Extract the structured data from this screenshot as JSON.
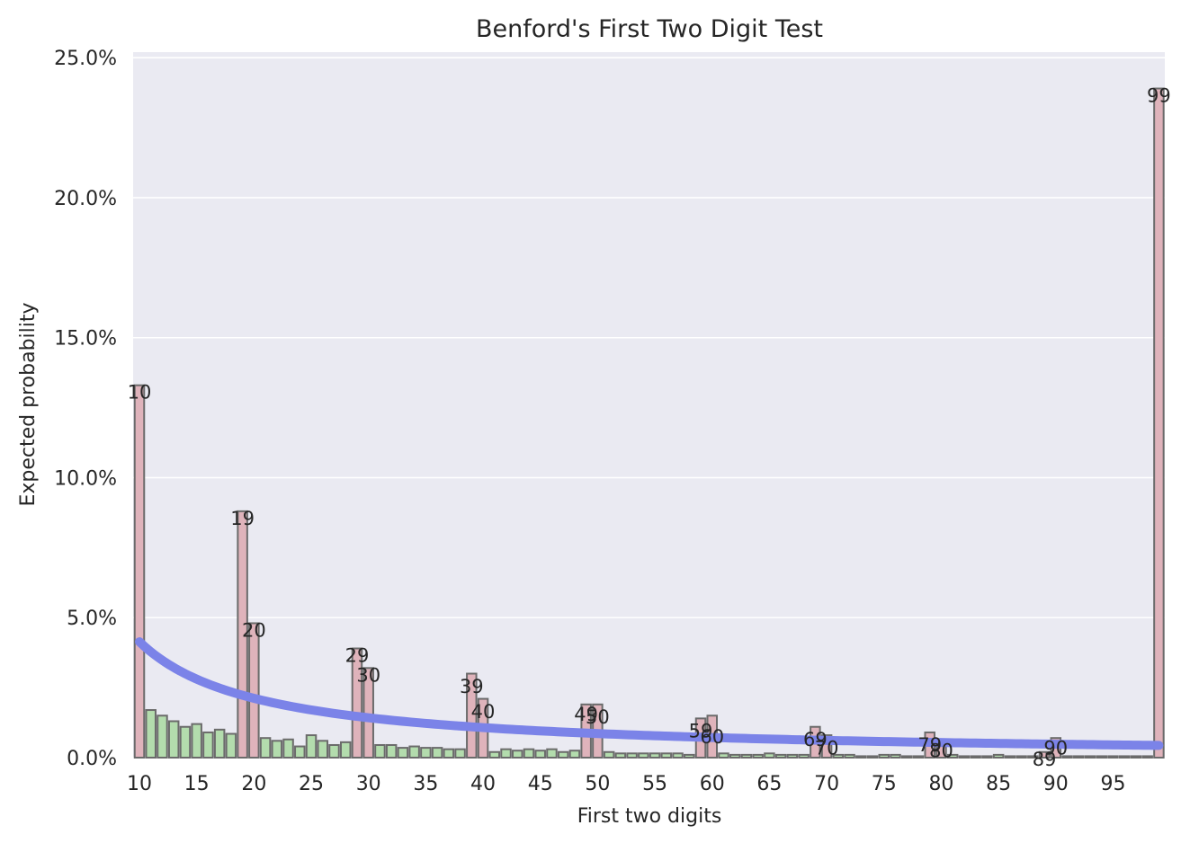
{
  "chart_data": {
    "type": "bar",
    "title": "Benford's First Two Digit Test",
    "xlabel": "First two digits",
    "ylabel": "Expected probability",
    "ylim": [
      0,
      25.2
    ],
    "y_ticks": [
      0,
      5,
      10,
      15,
      20,
      25
    ],
    "y_tick_labels": [
      "0.0%",
      "5.0%",
      "10.0%",
      "15.0%",
      "20.0%",
      "25.0%"
    ],
    "x_ticks": [
      10,
      15,
      20,
      25,
      30,
      35,
      40,
      45,
      50,
      55,
      60,
      65,
      70,
      75,
      80,
      85,
      90,
      95
    ],
    "x_tick_labels": [
      "10",
      "15",
      "20",
      "25",
      "30",
      "35",
      "40",
      "45",
      "50",
      "55",
      "60",
      "65",
      "70",
      "75",
      "80",
      "85",
      "90",
      "95"
    ],
    "grid": true,
    "colors": {
      "background": "#eaeaf2",
      "grid": "#ffffff",
      "highlighted_bar": "#dfb3bb",
      "normal_bar": "#b3dcad",
      "bar_edge": "#6b6b6b",
      "expected_line": "#7b83e8"
    },
    "series": [
      {
        "name": "",
        "categories": [
          10,
          11,
          12,
          13,
          14,
          15,
          16,
          17,
          18,
          19,
          20,
          21,
          22,
          23,
          24,
          25,
          26,
          27,
          28,
          29,
          30,
          31,
          32,
          33,
          34,
          35,
          36,
          37,
          38,
          39,
          40,
          41,
          42,
          43,
          44,
          45,
          46,
          47,
          48,
          49,
          50,
          51,
          52,
          53,
          54,
          55,
          56,
          57,
          58,
          59,
          60,
          61,
          62,
          63,
          64,
          65,
          66,
          67,
          68,
          69,
          70,
          71,
          72,
          73,
          74,
          75,
          76,
          77,
          78,
          79,
          80,
          81,
          82,
          83,
          84,
          85,
          86,
          87,
          88,
          89,
          90,
          91,
          92,
          93,
          94,
          95,
          96,
          97,
          98,
          99
        ],
        "values": [
          13.3,
          1.7,
          1.5,
          1.3,
          1.1,
          1.2,
          0.9,
          1.0,
          0.85,
          8.8,
          4.8,
          0.7,
          0.6,
          0.65,
          0.4,
          0.8,
          0.6,
          0.45,
          0.55,
          3.9,
          3.2,
          0.45,
          0.45,
          0.35,
          0.4,
          0.35,
          0.35,
          0.3,
          0.3,
          3.0,
          2.1,
          0.2,
          0.3,
          0.25,
          0.3,
          0.25,
          0.3,
          0.2,
          0.25,
          1.9,
          1.9,
          0.2,
          0.15,
          0.15,
          0.15,
          0.15,
          0.15,
          0.15,
          0.1,
          1.4,
          1.5,
          0.15,
          0.1,
          0.1,
          0.1,
          0.15,
          0.1,
          0.1,
          0.1,
          1.1,
          0.8,
          0.1,
          0.1,
          0.05,
          0.05,
          0.1,
          0.1,
          0.05,
          0.05,
          0.9,
          0.6,
          0.1,
          0.05,
          0.05,
          0.05,
          0.1,
          0.05,
          0.05,
          0.05,
          0.2,
          0.7,
          0.05,
          0.05,
          0.05,
          0.05,
          0.05,
          0.05,
          0.05,
          0.05,
          23.9
        ]
      }
    ],
    "highlighted": [
      10,
      19,
      20,
      29,
      30,
      39,
      40,
      49,
      50,
      59,
      60,
      69,
      70,
      79,
      80,
      89,
      90,
      99
    ],
    "bar_labels": [
      {
        "x": 10,
        "text": "10",
        "y": 13.3
      },
      {
        "x": 19,
        "text": "19",
        "y": 8.8
      },
      {
        "x": 20,
        "text": "20",
        "y": 4.8
      },
      {
        "x": 29,
        "text": "29",
        "y": 3.9
      },
      {
        "x": 30,
        "text": "30",
        "y": 3.2
      },
      {
        "x": 39,
        "text": "39",
        "y": 2.8
      },
      {
        "x": 40,
        "text": "40",
        "y": 1.9
      },
      {
        "x": 49,
        "text": "49",
        "y": 1.8
      },
      {
        "x": 50,
        "text": "50",
        "y": 1.7
      },
      {
        "x": 59,
        "text": "59",
        "y": 1.2
      },
      {
        "x": 60,
        "text": "60",
        "y": 1.0
      },
      {
        "x": 69,
        "text": "69",
        "y": 0.9
      },
      {
        "x": 70,
        "text": "70",
        "y": 0.6
      },
      {
        "x": 79,
        "text": "79",
        "y": 0.7
      },
      {
        "x": 80,
        "text": "80",
        "y": 0.5
      },
      {
        "x": 89,
        "text": "89",
        "y": 0.2
      },
      {
        "x": 90,
        "text": "90",
        "y": 0.6
      },
      {
        "x": 99,
        "text": "99",
        "y": 23.9
      }
    ],
    "expected_line": {
      "name": "",
      "formula": "log10(1 + 1/d)",
      "x_start": 10,
      "x_end": 99
    }
  }
}
